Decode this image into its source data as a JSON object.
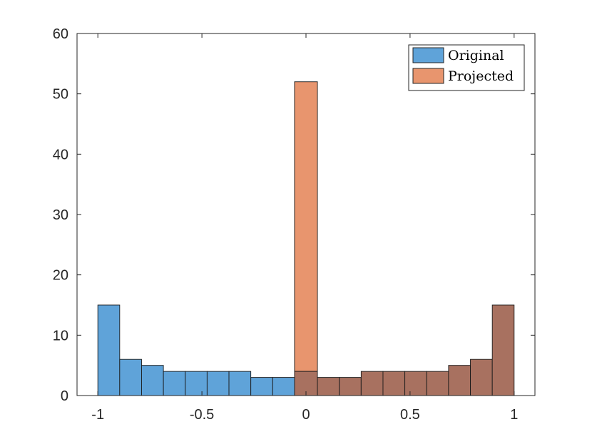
{
  "chart_data": {
    "type": "bar",
    "subtype": "overlaid-histogram",
    "title": "",
    "xlabel": "",
    "ylabel": "",
    "xlim": [
      -1.1,
      1.1
    ],
    "ylim": [
      0,
      60
    ],
    "xticks": [
      -1,
      -0.5,
      0,
      0.5,
      1
    ],
    "xtick_labels": [
      "-1",
      "-0.5",
      "0",
      "0.5",
      "1"
    ],
    "yticks": [
      0,
      10,
      20,
      30,
      40,
      50,
      60
    ],
    "ytick_labels": [
      "0",
      "10",
      "20",
      "30",
      "40",
      "50",
      "60"
    ],
    "grid": false,
    "legend_position": "top-right",
    "bin_edges": [
      -1.0,
      -0.895,
      -0.79,
      -0.685,
      -0.58,
      -0.475,
      -0.37,
      -0.265,
      -0.16,
      -0.055,
      0.055,
      0.16,
      0.265,
      0.37,
      0.475,
      0.58,
      0.685,
      0.79,
      0.895,
      1.0
    ],
    "series": [
      {
        "name": "Original",
        "color": "#5fa3d9",
        "counts": [
          15,
          6,
          5,
          4,
          4,
          4,
          4,
          3,
          3,
          4,
          3,
          3,
          4,
          4,
          4,
          4,
          5,
          6,
          15
        ]
      },
      {
        "name": "Projected",
        "color": "#e8956e",
        "counts": [
          0,
          0,
          0,
          0,
          0,
          0,
          0,
          0,
          0,
          52,
          3,
          3,
          4,
          4,
          4,
          4,
          5,
          6,
          15
        ]
      }
    ],
    "overlap_color": "#a87160"
  }
}
